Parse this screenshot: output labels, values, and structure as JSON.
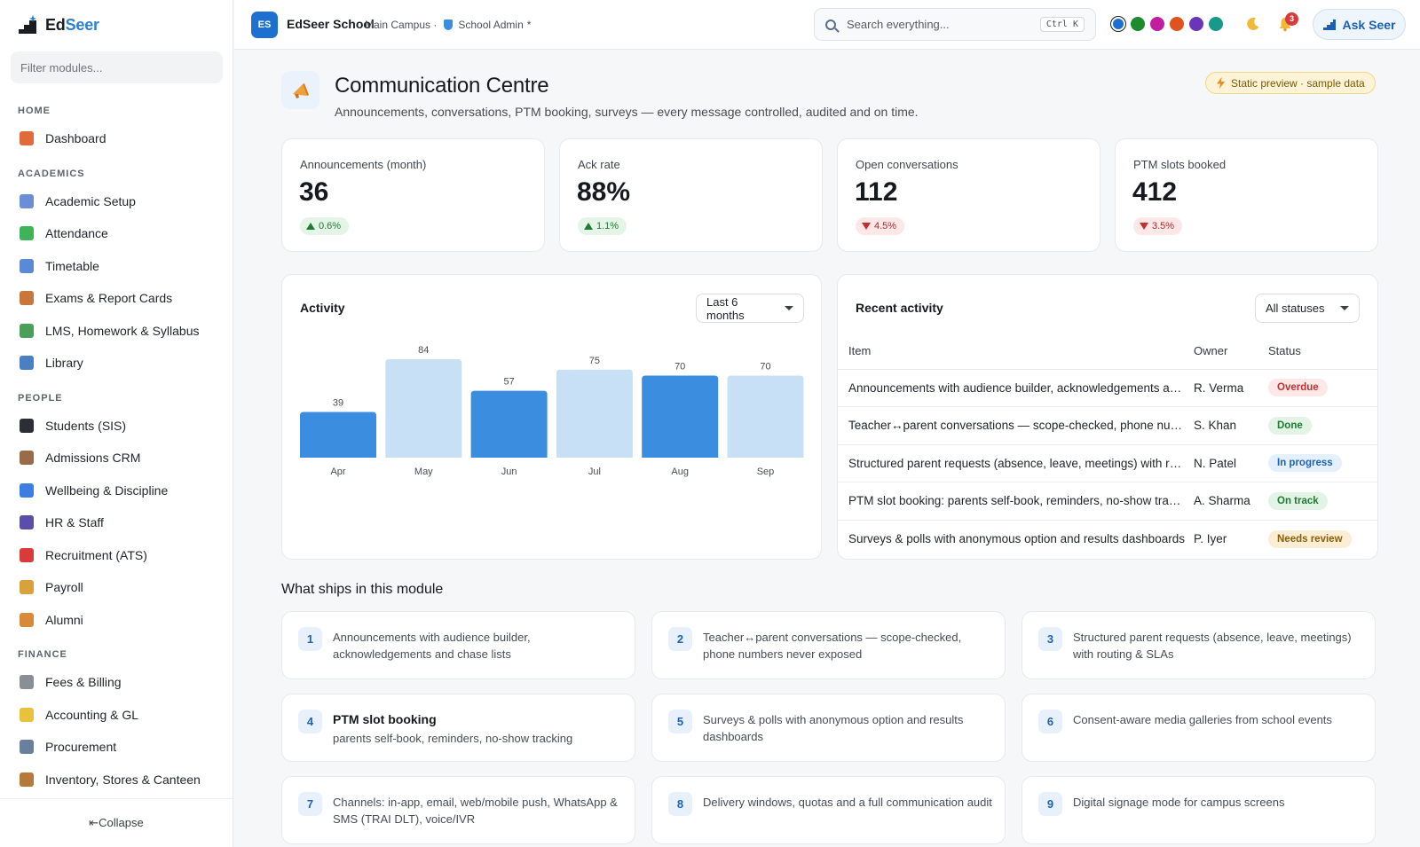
{
  "brand": {
    "name_prefix": "Ed",
    "name_suffix": "Seer"
  },
  "sidebar": {
    "filter_placeholder": "Filter modules...",
    "sections": [
      {
        "label": "HOME",
        "items": [
          {
            "label": "Dashboard",
            "icon": "house-icon",
            "color": "#e06a3a"
          }
        ]
      },
      {
        "label": "ACADEMICS",
        "items": [
          {
            "label": "Academic Setup",
            "icon": "calendar-icon",
            "color": "#6b8fd6"
          },
          {
            "label": "Attendance",
            "icon": "check-box-icon",
            "color": "#3fb35a"
          },
          {
            "label": "Timetable",
            "icon": "calendar-grid-icon",
            "color": "#5a8ad6"
          },
          {
            "label": "Exams & Report Cards",
            "icon": "clipboard-icon",
            "color": "#c8773a"
          },
          {
            "label": "LMS, Homework & Syllabus",
            "icon": "books-icon",
            "color": "#4aa05a"
          },
          {
            "label": "Library",
            "icon": "open-book-icon",
            "color": "#4a7fc4"
          }
        ]
      },
      {
        "label": "PEOPLE",
        "items": [
          {
            "label": "Students (SIS)",
            "icon": "graduation-cap-icon",
            "color": "#2c2f36"
          },
          {
            "label": "Admissions CRM",
            "icon": "form-icon",
            "color": "#9a6b4a"
          },
          {
            "label": "Wellbeing & Discipline",
            "icon": "heart-icon",
            "color": "#3b7de0"
          },
          {
            "label": "HR & Staff",
            "icon": "people-icon",
            "color": "#5a4fa8"
          },
          {
            "label": "Recruitment (ATS)",
            "icon": "magnet-icon",
            "color": "#d93a3a"
          },
          {
            "label": "Payroll",
            "icon": "money-bag-icon",
            "color": "#d9a13a"
          },
          {
            "label": "Alumni",
            "icon": "medal-icon",
            "color": "#d9893a"
          }
        ]
      },
      {
        "label": "FINANCE",
        "items": [
          {
            "label": "Fees & Billing",
            "icon": "receipt-icon",
            "color": "#8a8f96"
          },
          {
            "label": "Accounting & GL",
            "icon": "ledger-icon",
            "color": "#e8c23a"
          },
          {
            "label": "Procurement",
            "icon": "cart-icon",
            "color": "#6a7f9c"
          },
          {
            "label": "Inventory, Stores & Canteen",
            "icon": "box-icon",
            "color": "#b5793a"
          }
        ]
      }
    ],
    "collapse_label": "⇤Collapse"
  },
  "topbar": {
    "logo_initials": "ES",
    "school_name": "EdSeer School",
    "campus": "Main Campus ·",
    "role": "School Admin",
    "role_suffix": "*",
    "search_placeholder": "Search everything...",
    "shortcut": "Ctrl K",
    "theme_colors": [
      "#1d6fd0",
      "#1e8a2e",
      "#c21ca0",
      "#e0531c",
      "#6a35b8",
      "#19998a"
    ],
    "notification_count": "3",
    "ask_label": "Ask Seer"
  },
  "page": {
    "title": "Communication Centre",
    "subtitle": "Announcements, conversations, PTM booking, surveys — every message controlled, audited and on time.",
    "preview_badge": "Static preview · sample data"
  },
  "kpis": [
    {
      "label": "Announcements (month)",
      "value": "36",
      "delta": "0.6%",
      "direction": "up"
    },
    {
      "label": "Ack rate",
      "value": "88%",
      "delta": "1.1%",
      "direction": "up"
    },
    {
      "label": "Open conversations",
      "value": "112",
      "delta": "4.5%",
      "direction": "down"
    },
    {
      "label": "PTM slots booked",
      "value": "412",
      "delta": "3.5%",
      "direction": "down"
    }
  ],
  "activity": {
    "title": "Activity",
    "range": "Last 6 months",
    "chart_data": {
      "type": "bar",
      "categories": [
        "Apr",
        "May",
        "Jun",
        "Jul",
        "Aug",
        "Sep"
      ],
      "values": [
        39,
        84,
        57,
        75,
        70,
        70
      ],
      "colors": [
        "#3b8de0",
        "#c8e0f6",
        "#3b8de0",
        "#c8e0f6",
        "#3b8de0",
        "#c8e0f6"
      ],
      "ylim": [
        0,
        84
      ],
      "grid": false,
      "data_labels": true
    }
  },
  "recent": {
    "title": "Recent activity",
    "filter": "All statuses",
    "columns": [
      "Item",
      "Owner",
      "Status"
    ],
    "rows": [
      {
        "item": "Announcements with audience builder, acknowledgements and chase lists",
        "owner": "R. Verma",
        "status": "Overdue",
        "kind": "overdue"
      },
      {
        "item": "Teacher↔parent conversations — scope-checked, phone numbers never exposed",
        "owner": "S. Khan",
        "status": "Done",
        "kind": "done"
      },
      {
        "item": "Structured parent requests (absence, leave, meetings) with routing & SLAs",
        "owner": "N. Patel",
        "status": "In progress",
        "kind": "progress"
      },
      {
        "item": "PTM slot booking: parents self-book, reminders, no-show tracking",
        "owner": "A. Sharma",
        "status": "On track",
        "kind": "ontrack"
      },
      {
        "item": "Surveys & polls with anonymous option and results dashboards",
        "owner": "P. Iyer",
        "status": "Needs review",
        "kind": "review"
      }
    ]
  },
  "features": {
    "title": "What ships in this module",
    "items": [
      {
        "num": "1",
        "head": "",
        "text": "Announcements with audience builder, acknowledgements and chase lists"
      },
      {
        "num": "2",
        "head": "",
        "text": "Teacher↔parent conversations — scope-checked, phone numbers never exposed"
      },
      {
        "num": "3",
        "head": "",
        "text": "Structured parent requests (absence, leave, meetings) with routing & SLAs"
      },
      {
        "num": "4",
        "head": "PTM slot booking",
        "text": "parents self-book, reminders, no-show tracking"
      },
      {
        "num": "5",
        "head": "",
        "text": "Surveys & polls with anonymous option and results dashboards"
      },
      {
        "num": "6",
        "head": "",
        "text": "Consent-aware media galleries from school events"
      },
      {
        "num": "7",
        "head": "",
        "text": "Channels: in-app, email, web/mobile push, WhatsApp & SMS (TRAI DLT), voice/IVR"
      },
      {
        "num": "8",
        "head": "",
        "text": "Delivery windows, quotas and a full communication audit"
      },
      {
        "num": "9",
        "head": "",
        "text": "Digital signage mode for campus screens"
      }
    ]
  }
}
